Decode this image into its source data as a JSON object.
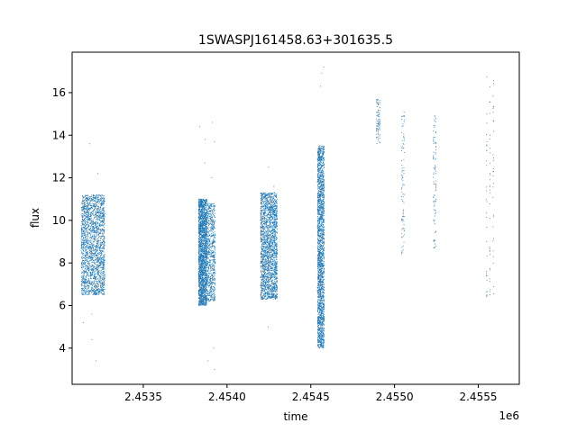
{
  "chart_data": {
    "type": "scatter",
    "title": "1SWASPJ161458.63+301635.5",
    "xlabel": "time",
    "ylabel": "flux",
    "x_offset_label": "1e6",
    "xlim": [
      2453075,
      2455745
    ],
    "ylim": [
      2.3,
      17.9
    ],
    "x_ticks": [
      2453500,
      2454000,
      2454500,
      2455000,
      2455500
    ],
    "x_tick_labels": [
      "2.4535",
      "2.4540",
      "2.4545",
      "2.4550",
      "2.4555"
    ],
    "y_ticks": [
      4,
      6,
      8,
      10,
      12,
      14,
      16
    ],
    "y_tick_labels": [
      "4",
      "6",
      "8",
      "10",
      "12",
      "14",
      "16"
    ],
    "grid": false,
    "marker_color": "#1f77b4",
    "clusters": [
      {
        "x_range": [
          2453130,
          2453270
        ],
        "y_range": [
          6.5,
          11.2
        ],
        "density": "dense",
        "outliers_y": [
          3.4,
          4.4,
          5.2,
          5.6,
          12.2,
          13.6
        ]
      },
      {
        "x_range": [
          2453830,
          2453880
        ],
        "y_range": [
          6.0,
          11.0
        ],
        "density": "dense",
        "outliers_y": [
          12.7,
          13.8,
          14.4
        ]
      },
      {
        "x_range": [
          2453880,
          2453930
        ],
        "y_range": [
          6.2,
          10.8
        ],
        "density": "medium",
        "outliers_y": [
          3.0,
          3.4,
          4.0,
          12.0,
          13.7,
          14.6
        ]
      },
      {
        "x_range": [
          2454200,
          2454300
        ],
        "y_range": [
          6.3,
          11.3
        ],
        "density": "dense",
        "outliers_y": [
          5.0,
          11.6,
          12.5
        ]
      },
      {
        "x_range": [
          2454540,
          2454580
        ],
        "y_range": [
          4.0,
          13.5
        ],
        "density": "dense",
        "outliers_y": [
          16.3,
          16.9,
          17.2
        ]
      },
      {
        "x_range": [
          2454890,
          2454915
        ],
        "y_range": [
          13.6,
          15.7
        ],
        "density": "sparse",
        "outliers_y": []
      },
      {
        "x_range": [
          2455040,
          2455060
        ],
        "y_range": [
          8.4,
          15.1
        ],
        "density": "sparse",
        "outliers_y": []
      },
      {
        "x_range": [
          2455230,
          2455250
        ],
        "y_range": [
          8.6,
          15.0
        ],
        "density": "sparse",
        "outliers_y": []
      },
      {
        "x_range": [
          2455540,
          2455600
        ],
        "y_range": [
          6.4,
          16.8
        ],
        "density": "sparse",
        "outliers_y": []
      }
    ]
  }
}
